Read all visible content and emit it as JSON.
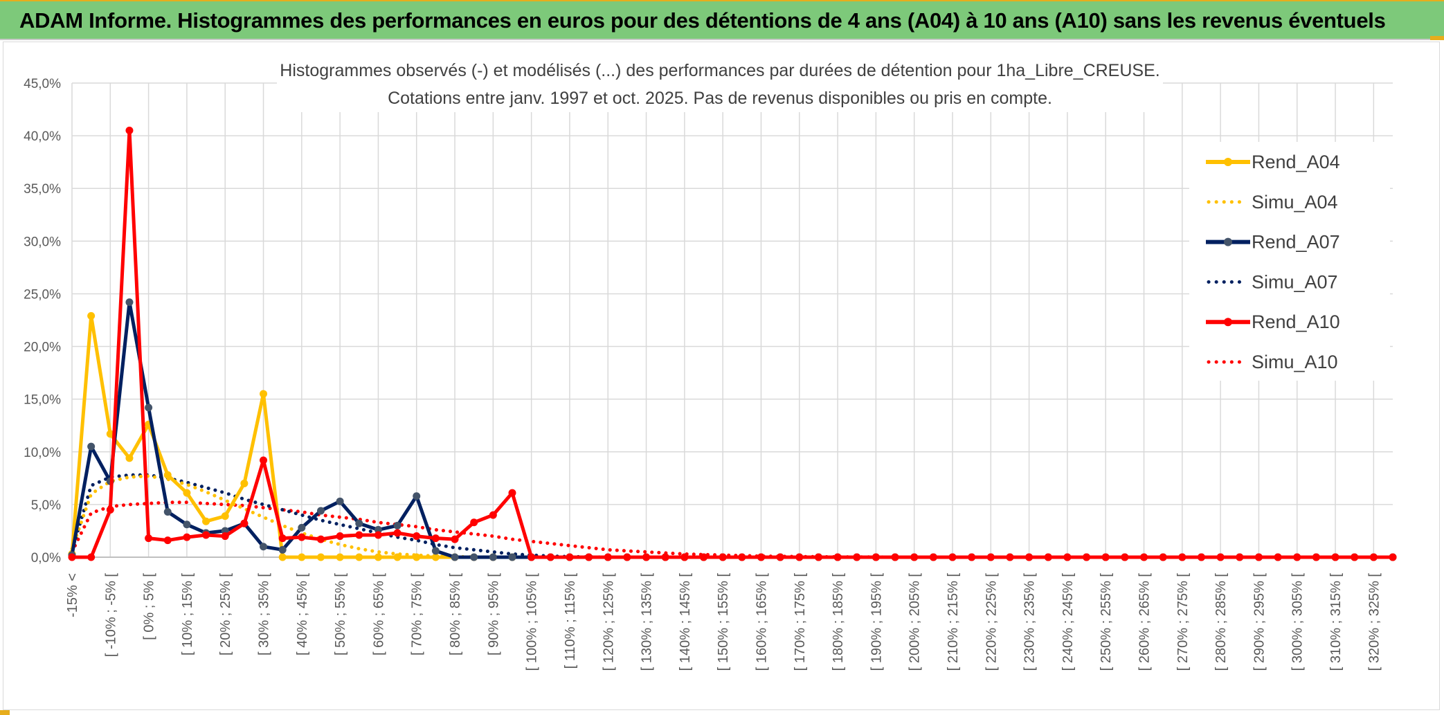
{
  "header": {
    "title": "ADAM Informe. Histogrammes des performances en euros pour des détentions de 4 ans (A04) à 10 ans (A10) sans les revenus éventuels"
  },
  "colors": {
    "banner": "#7dc97a",
    "accent": "#e7ad1c",
    "a04": "#ffc000",
    "a07": "#002060",
    "a07_marker": "#44546a",
    "a10": "#ff0000",
    "grid": "#d9d9d9",
    "axis_text": "#595959"
  },
  "chart_data": {
    "type": "line",
    "title_line1": "Histogrammes observés (-) et modélisés (...) des performances par durées de détention pour 1ha_Libre_CREUSE.",
    "title_line2": "Cotations entre janv. 1997 et oct. 2025. Pas de revenus disponibles ou pris en compte.",
    "ylim": [
      0,
      45
    ],
    "yticks": [
      "0,0%",
      "5,0%",
      "10,0%",
      "15,0%",
      "20,0%",
      "25,0%",
      "30,0%",
      "35,0%",
      "40,0%",
      "45,0%"
    ],
    "xtick_labels": [
      "-15% <",
      "[ -10% ; -5% [",
      "[ 0% ; 5% [",
      "[ 10% ; 15% [",
      "[ 20% ; 25% [",
      "[ 30% ; 35% [",
      "[ 40% ; 45% [",
      "[ 50% ; 55% [",
      "[ 60% ; 65% [",
      "[ 70% ; 75% [",
      "[ 80% ; 85% [",
      "[ 90% ; 95% [",
      "[ 100% ; 105% [",
      "[ 110% ; 115% [",
      "[ 120% ; 125% [",
      "[ 130% ; 135% [",
      "[ 140% ; 145% [",
      "[ 150% ; 155% [",
      "[ 160% ; 165% [",
      "[ 170% ; 175% [",
      "[ 180% ; 185% [",
      "[ 190% ; 195% [",
      "[ 200% ; 205% [",
      "[ 210% ; 215% [",
      "[ 220% ; 225% [",
      "[ 230% ; 235% [",
      "[ 240% ; 245% [",
      "[ 250% ; 255% [",
      "[ 260% ; 265% [",
      "[ 270% ; 275% [",
      "[ 280% ; 285% [",
      "[ 290% ; 295% [",
      "[ 300% ; 305% [",
      "[ 310% ; 315% [",
      "[ 320% ; 325% ["
    ],
    "n_bins": 70,
    "series": [
      {
        "name": "Rend_A04",
        "style": "solid",
        "color": "#ffc000",
        "marker_color": "#ffc000",
        "values": [
          0.3,
          22.9,
          11.7,
          9.4,
          12.6,
          7.8,
          6.1,
          3.4,
          3.9,
          7.0,
          15.5,
          0,
          0,
          0,
          0,
          0,
          0,
          0,
          0,
          0
        ]
      },
      {
        "name": "Simu_A04",
        "style": "dotted",
        "color": "#ffc000",
        "values": [
          0.8,
          6.0,
          7.2,
          7.6,
          7.7,
          7.4,
          6.9,
          6.2,
          5.4,
          4.6,
          3.8,
          3.0,
          2.3,
          1.7,
          1.2,
          0.8,
          0.5,
          0.3,
          0.2,
          0.1,
          0.05,
          0.02,
          0
        ]
      },
      {
        "name": "Rend_A07",
        "style": "solid",
        "color": "#002060",
        "marker_color": "#44546a",
        "values": [
          0.2,
          10.5,
          7.2,
          24.2,
          14.2,
          4.3,
          3.1,
          2.3,
          2.5,
          3.2,
          1.0,
          0.7,
          2.8,
          4.4,
          5.3,
          3.2,
          2.6,
          3.0,
          5.8,
          0.6,
          0,
          0,
          0,
          0,
          0
        ]
      },
      {
        "name": "Simu_A07",
        "style": "dotted",
        "color": "#002060",
        "values": [
          0.6,
          6.8,
          7.6,
          7.8,
          7.8,
          7.5,
          7.1,
          6.6,
          6.1,
          5.5,
          5.0,
          4.5,
          4.0,
          3.5,
          3.1,
          2.7,
          2.3,
          1.9,
          1.6,
          1.2,
          0.9,
          0.7,
          0.5,
          0.3,
          0.2,
          0.1,
          0.05,
          0.02,
          0
        ]
      },
      {
        "name": "Rend_A10",
        "style": "solid",
        "color": "#ff0000",
        "marker_color": "#ff0000",
        "values": [
          0,
          0,
          4.5,
          40.5,
          1.8,
          1.6,
          1.9,
          2.1,
          2.0,
          3.2,
          9.2,
          1.8,
          1.9,
          1.7,
          2.0,
          2.1,
          2.1,
          2.3,
          2.0,
          1.8,
          1.7,
          3.3,
          4.0,
          6.1,
          0,
          0,
          0,
          0,
          0,
          0,
          0,
          0,
          0,
          0,
          0,
          0,
          0,
          0,
          0,
          0,
          0,
          0,
          0,
          0,
          0,
          0,
          0,
          0,
          0,
          0,
          0,
          0,
          0,
          0,
          0,
          0,
          0,
          0,
          0,
          0,
          0,
          0,
          0,
          0,
          0,
          0,
          0,
          0,
          0,
          0
        ]
      },
      {
        "name": "Simu_A10",
        "style": "dotted",
        "color": "#ff0000",
        "values": [
          0.5,
          4.2,
          4.8,
          5.0,
          5.1,
          5.2,
          5.2,
          5.1,
          5.0,
          4.9,
          4.7,
          4.5,
          4.3,
          4.0,
          3.8,
          3.6,
          3.3,
          3.1,
          2.9,
          2.6,
          2.4,
          2.2,
          2.0,
          1.7,
          1.5,
          1.3,
          1.1,
          0.9,
          0.7,
          0.6,
          0.5,
          0.4,
          0.3,
          0.25,
          0.2,
          0.15,
          0.1,
          0.08,
          0.06,
          0.04,
          0.03,
          0.02,
          0.01,
          0
        ]
      }
    ],
    "legend": {
      "position": "right",
      "entries": [
        "Rend_A04",
        "Simu_A04",
        "Rend_A07",
        "Simu_A07",
        "Rend_A10",
        "Simu_A10"
      ]
    }
  }
}
